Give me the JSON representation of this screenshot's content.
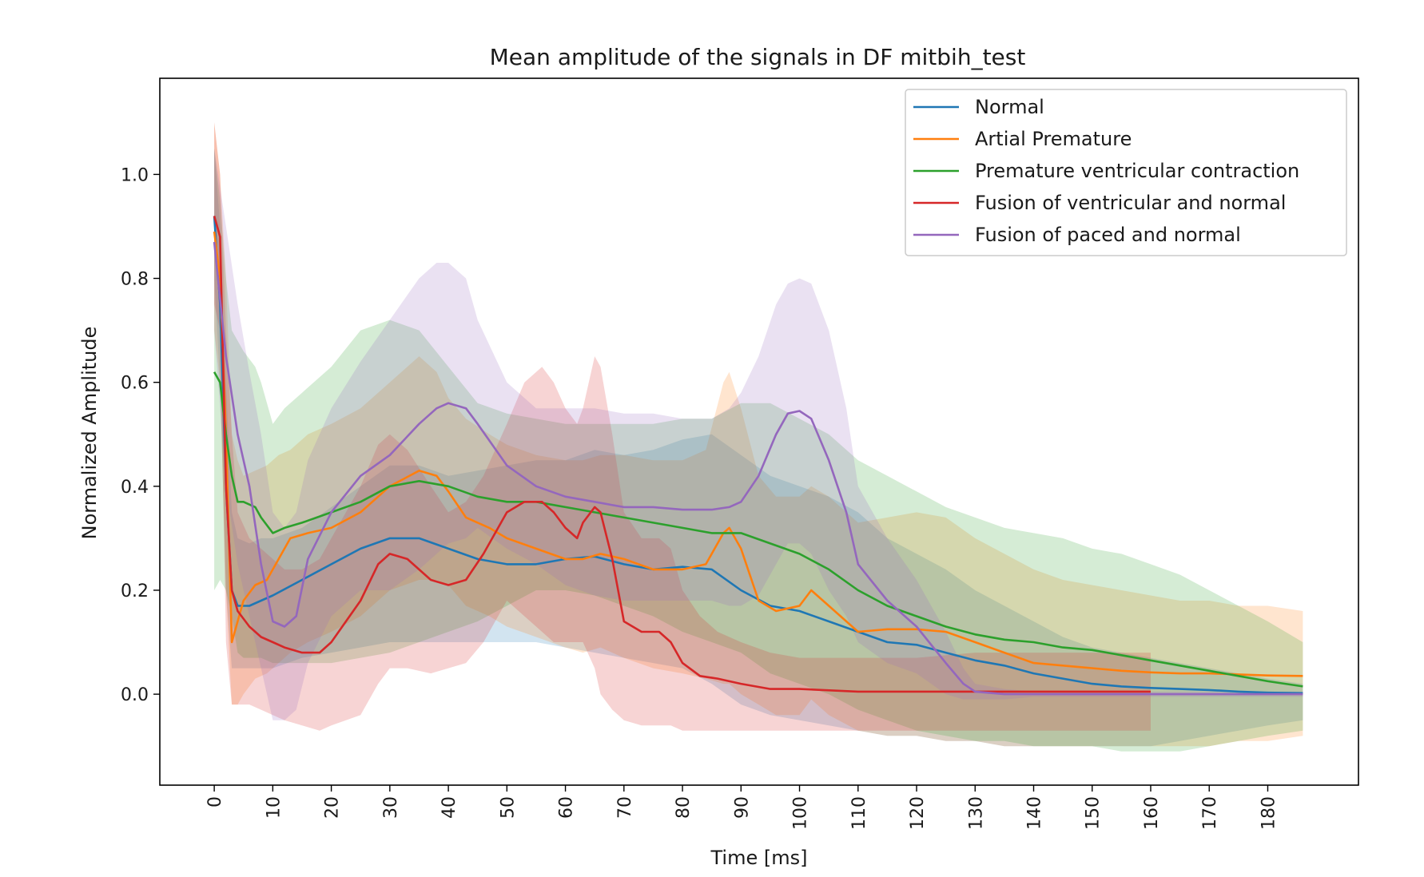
{
  "chart_data": {
    "type": "line",
    "title": "Mean amplitude of the signals in DF mitbih_test",
    "xlabel": "Time [ms]",
    "ylabel": "Normalized Amplitude",
    "xlim": [
      -9.3,
      195.5
    ],
    "ylim": [
      -0.175,
      1.185
    ],
    "x_ticks": [
      0,
      10,
      20,
      30,
      40,
      50,
      60,
      70,
      80,
      90,
      100,
      110,
      120,
      130,
      140,
      150,
      160,
      170,
      180
    ],
    "y_ticks": [
      0.0,
      0.2,
      0.4,
      0.6,
      0.8,
      1.0
    ],
    "y_tick_labels": [
      "0.0",
      "0.2",
      "0.4",
      "0.6",
      "0.8",
      "1.0"
    ],
    "x_tick_rotation": "vertical",
    "grid": false,
    "legend_position": "top-right",
    "shaded_band": "mean ± standard deviation",
    "series": [
      {
        "name": "Normal",
        "color": "#1f77b4",
        "x": [
          0,
          1,
          2,
          3,
          4,
          6,
          8,
          10,
          15,
          20,
          25,
          30,
          35,
          40,
          45,
          50,
          55,
          60,
          65,
          70,
          75,
          80,
          85,
          90,
          95,
          100,
          105,
          110,
          115,
          120,
          125,
          130,
          135,
          140,
          145,
          150,
          155,
          160,
          165,
          170,
          175,
          180,
          186
        ],
        "y": [
          0.92,
          0.75,
          0.4,
          0.2,
          0.17,
          0.17,
          0.18,
          0.19,
          0.22,
          0.25,
          0.28,
          0.3,
          0.3,
          0.28,
          0.26,
          0.25,
          0.25,
          0.26,
          0.265,
          0.25,
          0.24,
          0.245,
          0.24,
          0.2,
          0.17,
          0.16,
          0.14,
          0.12,
          0.1,
          0.095,
          0.08,
          0.065,
          0.055,
          0.04,
          0.03,
          0.02,
          0.015,
          0.012,
          0.01,
          0.008,
          0.005,
          0.003,
          0.002
        ],
        "upper": [
          1.05,
          0.9,
          0.6,
          0.35,
          0.3,
          0.29,
          0.3,
          0.3,
          0.32,
          0.36,
          0.4,
          0.44,
          0.44,
          0.42,
          0.43,
          0.44,
          0.45,
          0.45,
          0.47,
          0.46,
          0.47,
          0.49,
          0.5,
          0.46,
          0.42,
          0.4,
          0.38,
          0.35,
          0.3,
          0.27,
          0.24,
          0.2,
          0.17,
          0.14,
          0.11,
          0.09,
          0.08,
          0.07,
          0.06,
          0.05,
          0.04,
          0.03,
          0.02
        ],
        "lower": [
          0.8,
          0.6,
          0.2,
          0.05,
          0.05,
          0.05,
          0.05,
          0.05,
          0.07,
          0.08,
          0.09,
          0.1,
          0.1,
          0.1,
          0.1,
          0.1,
          0.1,
          0.09,
          0.08,
          0.07,
          0.06,
          0.05,
          0.02,
          -0.02,
          -0.04,
          -0.05,
          -0.06,
          -0.07,
          -0.08,
          -0.08,
          -0.09,
          -0.09,
          -0.1,
          -0.1,
          -0.1,
          -0.1,
          -0.1,
          -0.1,
          -0.09,
          -0.08,
          -0.07,
          -0.06,
          -0.05
        ]
      },
      {
        "name": "Artial Premature",
        "color": "#ff7f0e",
        "x": [
          0,
          1,
          2,
          3,
          4,
          5,
          7,
          9,
          11,
          13,
          16,
          20,
          25,
          30,
          35,
          38,
          40,
          43,
          47,
          50,
          55,
          60,
          63,
          66,
          70,
          75,
          80,
          84,
          87,
          88,
          90,
          93,
          96,
          100,
          102,
          105,
          110,
          115,
          120,
          125,
          130,
          135,
          140,
          145,
          150,
          155,
          160,
          165,
          170,
          175,
          180,
          186
        ],
        "y": [
          0.89,
          0.8,
          0.5,
          0.1,
          0.14,
          0.18,
          0.21,
          0.22,
          0.26,
          0.3,
          0.31,
          0.32,
          0.35,
          0.4,
          0.43,
          0.42,
          0.39,
          0.34,
          0.32,
          0.3,
          0.28,
          0.26,
          0.26,
          0.27,
          0.26,
          0.24,
          0.24,
          0.25,
          0.31,
          0.32,
          0.28,
          0.18,
          0.16,
          0.17,
          0.2,
          0.17,
          0.12,
          0.125,
          0.125,
          0.12,
          0.1,
          0.08,
          0.06,
          0.055,
          0.05,
          0.045,
          0.042,
          0.04,
          0.04,
          0.038,
          0.036,
          0.035
        ],
        "upper": [
          1.1,
          1.0,
          0.8,
          0.5,
          0.45,
          0.42,
          0.43,
          0.44,
          0.46,
          0.47,
          0.5,
          0.52,
          0.55,
          0.6,
          0.65,
          0.62,
          0.57,
          0.53,
          0.5,
          0.48,
          0.46,
          0.45,
          0.45,
          0.46,
          0.46,
          0.45,
          0.45,
          0.47,
          0.6,
          0.62,
          0.55,
          0.42,
          0.38,
          0.38,
          0.4,
          0.38,
          0.33,
          0.34,
          0.35,
          0.34,
          0.3,
          0.27,
          0.24,
          0.22,
          0.21,
          0.2,
          0.19,
          0.18,
          0.18,
          0.17,
          0.17,
          0.16
        ],
        "lower": [
          0.7,
          0.6,
          0.2,
          -0.02,
          -0.02,
          0.0,
          0.03,
          0.04,
          0.06,
          0.08,
          0.1,
          0.12,
          0.15,
          0.2,
          0.22,
          0.22,
          0.21,
          0.17,
          0.15,
          0.13,
          0.11,
          0.09,
          0.08,
          0.09,
          0.07,
          0.05,
          0.04,
          0.03,
          0.02,
          0.02,
          0.0,
          -0.02,
          -0.04,
          -0.04,
          -0.01,
          -0.04,
          -0.07,
          -0.08,
          -0.08,
          -0.09,
          -0.09,
          -0.1,
          -0.1,
          -0.1,
          -0.1,
          -0.1,
          -0.1,
          -0.1,
          -0.1,
          -0.09,
          -0.09,
          -0.08
        ]
      },
      {
        "name": "Premature ventricular contraction",
        "color": "#2ca02c",
        "x": [
          0,
          1,
          2,
          3,
          4,
          5,
          7,
          8,
          10,
          12,
          15,
          20,
          25,
          30,
          35,
          40,
          45,
          50,
          55,
          60,
          65,
          70,
          75,
          80,
          85,
          90,
          95,
          100,
          105,
          110,
          115,
          120,
          125,
          130,
          135,
          140,
          145,
          150,
          155,
          160,
          165,
          170,
          175,
          180,
          186
        ],
        "y": [
          0.62,
          0.6,
          0.5,
          0.42,
          0.37,
          0.37,
          0.36,
          0.34,
          0.31,
          0.32,
          0.33,
          0.35,
          0.37,
          0.4,
          0.41,
          0.4,
          0.38,
          0.37,
          0.37,
          0.36,
          0.35,
          0.34,
          0.33,
          0.32,
          0.31,
          0.31,
          0.29,
          0.27,
          0.24,
          0.2,
          0.17,
          0.15,
          0.13,
          0.115,
          0.105,
          0.1,
          0.09,
          0.085,
          0.075,
          0.065,
          0.055,
          0.045,
          0.035,
          0.025,
          0.015
        ],
        "upper": [
          1.05,
          0.95,
          0.8,
          0.7,
          0.68,
          0.66,
          0.63,
          0.6,
          0.52,
          0.55,
          0.58,
          0.63,
          0.7,
          0.72,
          0.7,
          0.63,
          0.56,
          0.54,
          0.53,
          0.52,
          0.52,
          0.52,
          0.52,
          0.53,
          0.53,
          0.56,
          0.56,
          0.53,
          0.5,
          0.45,
          0.42,
          0.39,
          0.36,
          0.34,
          0.32,
          0.31,
          0.3,
          0.28,
          0.27,
          0.25,
          0.23,
          0.2,
          0.17,
          0.14,
          0.1
        ],
        "lower": [
          0.2,
          0.22,
          0.2,
          0.15,
          0.08,
          0.07,
          0.07,
          0.07,
          0.06,
          0.06,
          0.06,
          0.06,
          0.07,
          0.08,
          0.1,
          0.12,
          0.14,
          0.17,
          0.2,
          0.2,
          0.19,
          0.17,
          0.15,
          0.12,
          0.1,
          0.08,
          0.04,
          0.02,
          0.0,
          -0.03,
          -0.05,
          -0.07,
          -0.08,
          -0.09,
          -0.09,
          -0.1,
          -0.1,
          -0.1,
          -0.11,
          -0.11,
          -0.11,
          -0.1,
          -0.09,
          -0.08,
          -0.07
        ]
      },
      {
        "name": "Fusion of ventricular and normal",
        "color": "#d62728",
        "x": [
          0,
          1,
          2,
          3,
          4,
          6,
          8,
          10,
          12,
          15,
          18,
          20,
          25,
          28,
          30,
          33,
          37,
          40,
          43,
          46,
          50,
          53,
          56,
          58,
          60,
          62,
          63,
          65,
          66,
          68,
          70,
          73,
          76,
          78,
          80,
          83,
          86,
          90,
          95,
          100,
          110,
          120,
          130,
          140,
          150,
          160
        ],
        "y": [
          0.92,
          0.88,
          0.4,
          0.2,
          0.16,
          0.13,
          0.11,
          0.1,
          0.09,
          0.08,
          0.08,
          0.1,
          0.18,
          0.25,
          0.27,
          0.26,
          0.22,
          0.21,
          0.22,
          0.27,
          0.35,
          0.37,
          0.37,
          0.35,
          0.32,
          0.3,
          0.33,
          0.36,
          0.35,
          0.26,
          0.14,
          0.12,
          0.12,
          0.1,
          0.06,
          0.035,
          0.03,
          0.02,
          0.01,
          0.01,
          0.005,
          0.005,
          0.005,
          0.005,
          0.005,
          0.005
        ],
        "upper": [
          1.1,
          1.0,
          0.7,
          0.5,
          0.35,
          0.3,
          0.28,
          0.26,
          0.24,
          0.24,
          0.26,
          0.3,
          0.4,
          0.48,
          0.5,
          0.47,
          0.4,
          0.35,
          0.37,
          0.42,
          0.52,
          0.6,
          0.63,
          0.6,
          0.55,
          0.52,
          0.55,
          0.65,
          0.63,
          0.5,
          0.35,
          0.3,
          0.3,
          0.28,
          0.2,
          0.15,
          0.12,
          0.1,
          0.08,
          0.07,
          0.07,
          0.07,
          0.08,
          0.08,
          0.08,
          0.08
        ],
        "lower": [
          0.75,
          0.7,
          0.1,
          -0.02,
          -0.02,
          -0.02,
          -0.03,
          -0.04,
          -0.05,
          -0.06,
          -0.07,
          -0.06,
          -0.04,
          0.02,
          0.05,
          0.05,
          0.04,
          0.05,
          0.06,
          0.1,
          0.18,
          0.15,
          0.12,
          0.1,
          0.1,
          0.1,
          0.1,
          0.05,
          0.0,
          -0.03,
          -0.05,
          -0.06,
          -0.06,
          -0.06,
          -0.07,
          -0.07,
          -0.07,
          -0.07,
          -0.07,
          -0.07,
          -0.07,
          -0.07,
          -0.07,
          -0.07,
          -0.07,
          -0.07
        ]
      },
      {
        "name": "Fusion of paced and normal",
        "color": "#9467bd",
        "x": [
          0,
          2,
          4,
          6,
          8,
          10,
          12,
          14,
          16,
          20,
          25,
          30,
          35,
          38,
          40,
          43,
          45,
          50,
          55,
          60,
          65,
          70,
          75,
          80,
          85,
          88,
          90,
          93,
          96,
          98,
          100,
          102,
          105,
          108,
          110,
          115,
          120,
          125,
          128,
          130,
          135,
          140,
          150,
          160,
          170,
          186
        ],
        "y": [
          0.87,
          0.65,
          0.5,
          0.4,
          0.25,
          0.14,
          0.13,
          0.15,
          0.26,
          0.35,
          0.42,
          0.46,
          0.52,
          0.55,
          0.56,
          0.55,
          0.52,
          0.44,
          0.4,
          0.38,
          0.37,
          0.36,
          0.36,
          0.355,
          0.355,
          0.36,
          0.37,
          0.42,
          0.5,
          0.54,
          0.545,
          0.53,
          0.45,
          0.35,
          0.25,
          0.18,
          0.13,
          0.06,
          0.02,
          0.005,
          0.0,
          0.0,
          0.0,
          0.0,
          0.0,
          0.0
        ],
        "upper": [
          1.05,
          0.9,
          0.75,
          0.62,
          0.5,
          0.35,
          0.32,
          0.35,
          0.45,
          0.55,
          0.64,
          0.72,
          0.8,
          0.83,
          0.83,
          0.8,
          0.72,
          0.6,
          0.55,
          0.55,
          0.55,
          0.54,
          0.54,
          0.53,
          0.53,
          0.55,
          0.58,
          0.65,
          0.75,
          0.79,
          0.8,
          0.79,
          0.7,
          0.55,
          0.4,
          0.3,
          0.22,
          0.12,
          0.05,
          0.02,
          0.01,
          0.005,
          0.005,
          0.005,
          0.005,
          0.005
        ],
        "lower": [
          0.7,
          0.4,
          0.25,
          0.15,
          0.05,
          -0.05,
          -0.05,
          -0.03,
          0.06,
          0.15,
          0.2,
          0.2,
          0.24,
          0.27,
          0.29,
          0.3,
          0.32,
          0.28,
          0.25,
          0.21,
          0.19,
          0.18,
          0.18,
          0.18,
          0.18,
          0.17,
          0.17,
          0.19,
          0.25,
          0.29,
          0.29,
          0.27,
          0.2,
          0.15,
          0.1,
          0.06,
          0.04,
          0.0,
          -0.01,
          -0.01,
          -0.01,
          -0.005,
          -0.005,
          -0.005,
          -0.005,
          -0.005
        ]
      }
    ]
  }
}
